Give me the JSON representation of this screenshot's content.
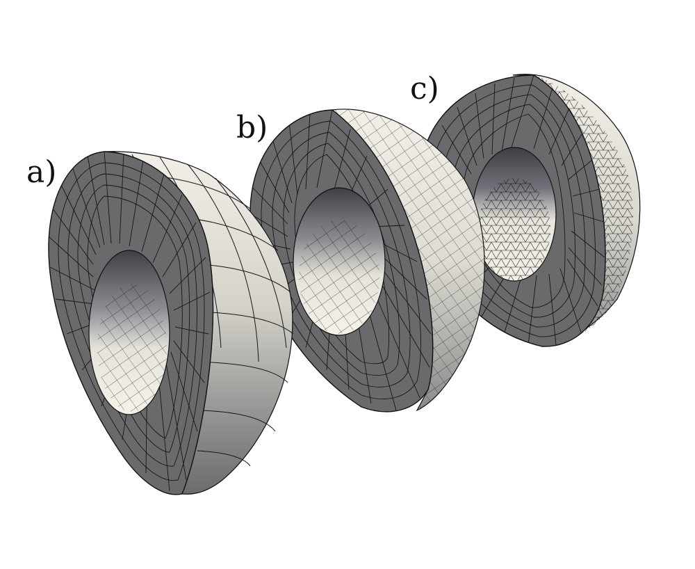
{
  "figure": {
    "panels": [
      {
        "id": "a",
        "label": "a)",
        "mesh": "coarse-hexahedral"
      },
      {
        "id": "b",
        "label": "b)",
        "mesh": "hexahedral"
      },
      {
        "id": "c",
        "label": "c)",
        "mesh": "hex-tet-mixed"
      }
    ]
  },
  "colors": {
    "background": "#ffffff",
    "cut_face": "#6a6a6c",
    "outer_light": "#f1efe6",
    "outer_shade": "#8c8c8c",
    "inner_dark": "#44444a",
    "inner_light": "#f3f1e8",
    "mesh_line": "#111111"
  }
}
